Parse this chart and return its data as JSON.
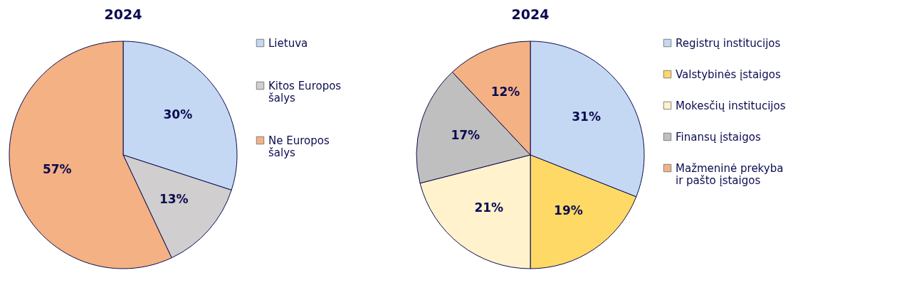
{
  "chart_data": [
    {
      "type": "pie",
      "title": "2024",
      "categories": [
        "Lietuva",
        "Kitos Europos šalys",
        "Ne Europos šalys"
      ],
      "values": [
        30,
        13,
        57
      ],
      "value_labels": [
        "30%",
        "13%",
        "57%"
      ],
      "colors": [
        "#c5d8f3",
        "#d0cece",
        "#f4b183"
      ],
      "legend": "right"
    },
    {
      "type": "pie",
      "title": "2024",
      "categories": [
        "Registrų institucijos",
        "Valstybinės įstaigos",
        "Mokesčių institucijos",
        "Finansų įstaigos",
        "Mažmeninė prekyba ir pašto įstaigos"
      ],
      "values": [
        31,
        19,
        21,
        17,
        12
      ],
      "value_labels": [
        "31%",
        "19%",
        "21%",
        "17%",
        "12%"
      ],
      "colors": [
        "#c5d8f3",
        "#ffd966",
        "#fff2cc",
        "#bfbfbf",
        "#f4b183"
      ],
      "legend": "right"
    }
  ]
}
